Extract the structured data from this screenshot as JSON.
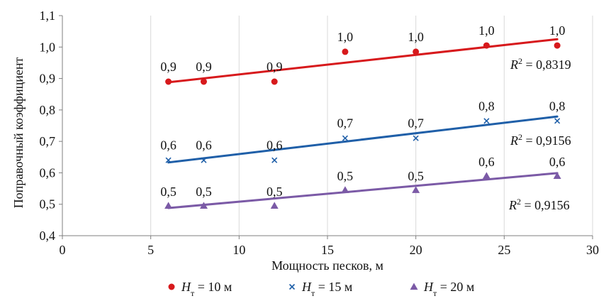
{
  "chart_data": {
    "type": "scatter",
    "xlabel": "Мощность песков, м",
    "ylabel": "Поправочный коэффициент",
    "xlim": [
      0,
      30
    ],
    "ylim": [
      0.4,
      1.1
    ],
    "x_ticks": [
      0,
      5,
      10,
      15,
      20,
      25,
      30
    ],
    "x_tick_labels": [
      "0",
      "5",
      "10",
      "15",
      "20",
      "25",
      "30"
    ],
    "y_ticks": [
      0.4,
      0.5,
      0.6,
      0.7,
      0.8,
      0.9,
      1.0,
      1.1
    ],
    "y_tick_labels": [
      "0,4",
      "0,5",
      "0,6",
      "0,7",
      "0,8",
      "0,9",
      "1,0",
      "1,1"
    ],
    "grid": "vertical",
    "legend_position": "bottom",
    "series": [
      {
        "name": "Hт = 10 м",
        "legend_var": "H",
        "legend_sub": "т",
        "legend_rest": " = 10 м",
        "marker": "circle",
        "color": "#d7191c",
        "x": [
          6,
          8,
          12,
          16,
          20,
          24,
          28
        ],
        "y": [
          0.89,
          0.89,
          0.89,
          0.985,
          0.985,
          1.005,
          1.005
        ],
        "labels": [
          "0,9",
          "0,9",
          "0,9",
          "1,0",
          "1,0",
          "1,0",
          "1,0"
        ],
        "trend": {
          "x": [
            6,
            28
          ],
          "y": [
            0.888,
            1.025
          ]
        },
        "r2_var": "R",
        "r2_sup": "2",
        "r2_rest": " = 0,8319"
      },
      {
        "name": "Hт = 15 м",
        "legend_var": "H",
        "legend_sub": "т",
        "legend_rest": " = 15 м",
        "marker": "cross",
        "color": "#1f5fa8",
        "x": [
          6,
          8,
          12,
          16,
          20,
          24,
          28
        ],
        "y": [
          0.64,
          0.64,
          0.64,
          0.71,
          0.71,
          0.765,
          0.765
        ],
        "labels": [
          "0,6",
          "0,6",
          "0,6",
          "0,7",
          "0,7",
          "0,8",
          "0,8"
        ],
        "trend": {
          "x": [
            6,
            28
          ],
          "y": [
            0.633,
            0.779
          ]
        },
        "r2_var": "R",
        "r2_sup": "2",
        "r2_rest": " = 0,9156"
      },
      {
        "name": "Hт = 20 м",
        "legend_var": "H",
        "legend_sub": "т",
        "legend_rest": " = 20 м",
        "marker": "triangle",
        "color": "#7b5aa6",
        "x": [
          6,
          8,
          12,
          16,
          20,
          24,
          28
        ],
        "y": [
          0.495,
          0.495,
          0.495,
          0.545,
          0.545,
          0.59,
          0.59
        ],
        "labels": [
          "0,5",
          "0,5",
          "0,5",
          "0,5",
          "0,5",
          "0,6",
          "0,6"
        ],
        "trend": {
          "x": [
            6,
            28
          ],
          "y": [
            0.488,
            0.599
          ]
        },
        "r2_var": "R",
        "r2_sup": "2",
        "r2_rest": " = 0,9156"
      }
    ]
  }
}
